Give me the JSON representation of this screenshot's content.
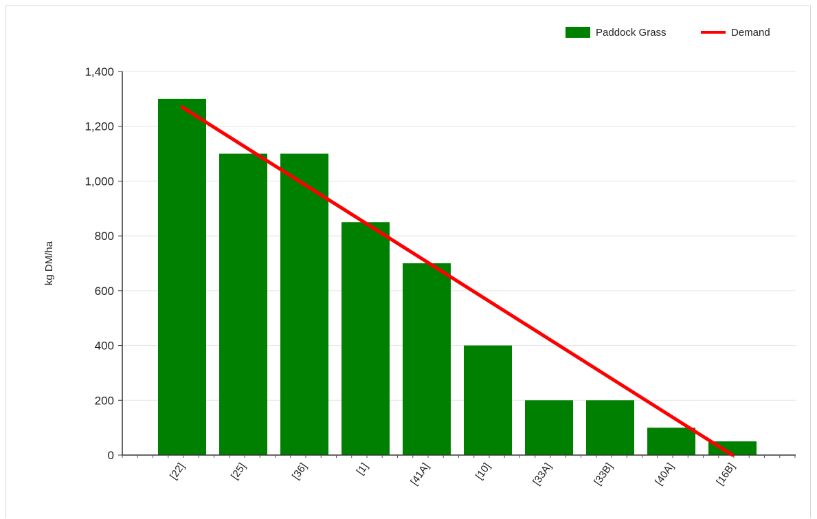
{
  "chart_data": {
    "type": "bar",
    "title": "",
    "xlabel": "",
    "ylabel": "kg DM/ha",
    "ylim": [
      0,
      1400
    ],
    "yticks": [
      "0",
      "200",
      "400",
      "600",
      "800",
      "1,000",
      "1,200",
      "1,400"
    ],
    "ytick_values": [
      0,
      200,
      400,
      600,
      800,
      1000,
      1200,
      1400
    ],
    "categories": [
      "[22]",
      "[25]",
      "[36]",
      "[1]",
      "[41A]",
      "[10]",
      "[33A]",
      "[33B]",
      "[40A]",
      "[16B]"
    ],
    "grid": true,
    "legend_position": "top-right",
    "series": [
      {
        "name": "Paddock Grass",
        "type": "bar",
        "color": "#008000",
        "values": [
          1300,
          1100,
          1100,
          850,
          700,
          400,
          200,
          200,
          100,
          50
        ]
      },
      {
        "name": "Demand",
        "type": "line",
        "color": "#ff0000",
        "x_start_category": "[22]",
        "x_end_category": "[16B]",
        "y_start": 1270,
        "y_end": 0
      }
    ]
  }
}
